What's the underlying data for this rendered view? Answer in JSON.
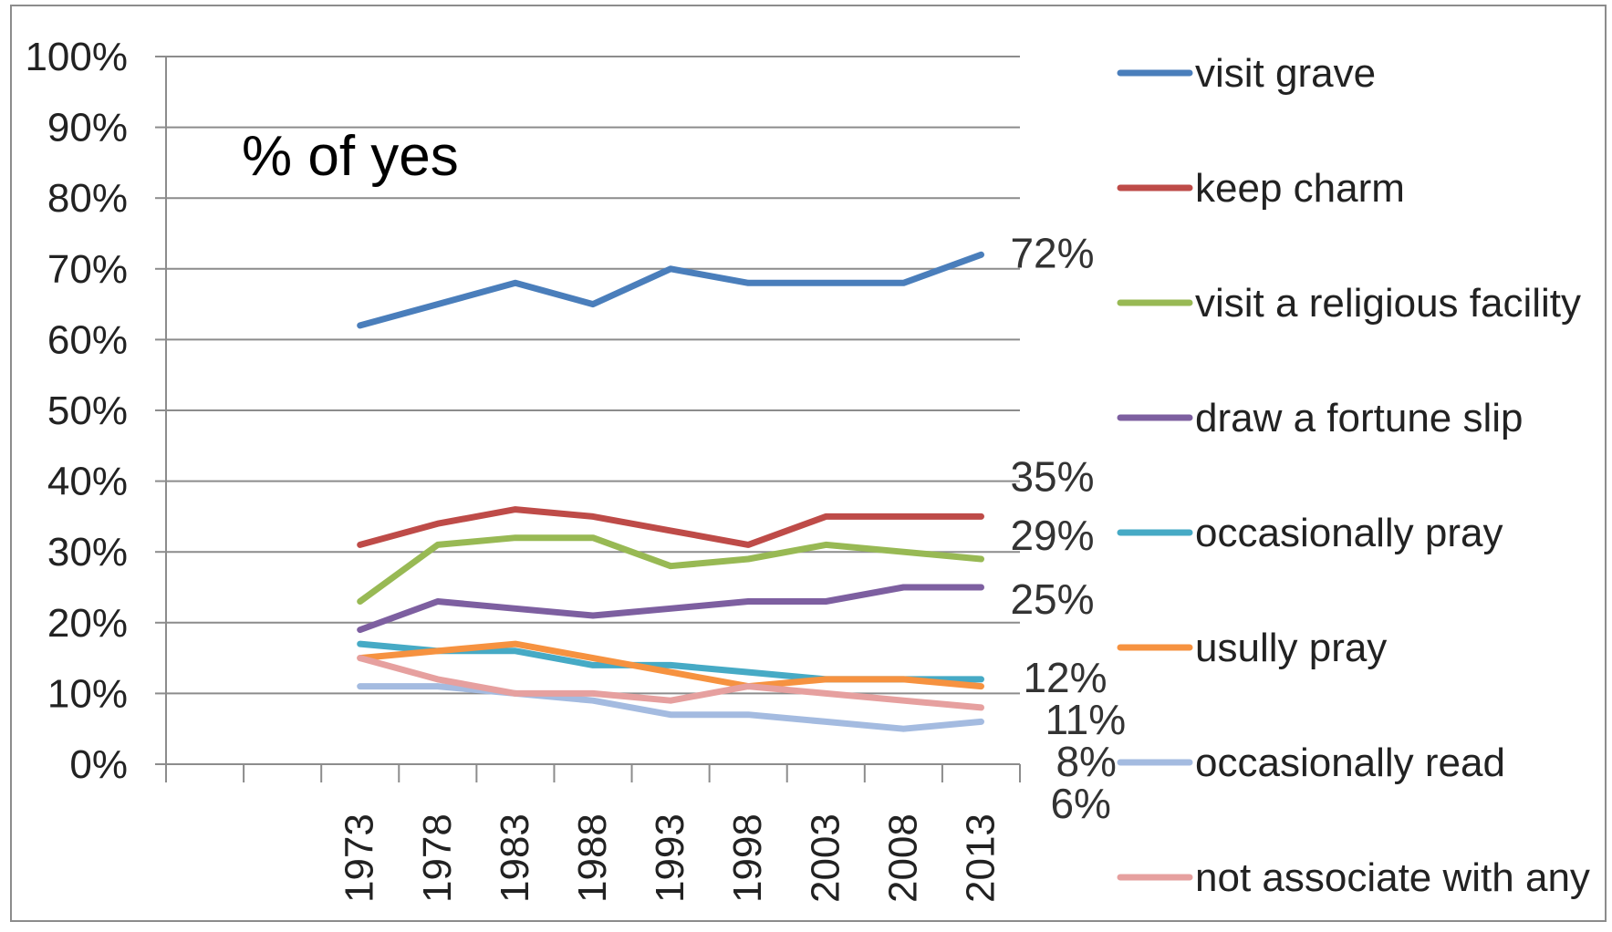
{
  "chart_data": {
    "type": "line",
    "title": "% of yes",
    "xlabel": "",
    "ylabel": "",
    "x": [
      "1973",
      "1978",
      "1983",
      "1988",
      "1993",
      "1998",
      "2003",
      "2008",
      "2013"
    ],
    "y_ticks": [
      "0%",
      "10%",
      "20%",
      "30%",
      "40%",
      "50%",
      "60%",
      "70%",
      "80%",
      "90%",
      "100%"
    ],
    "ylim": [
      0,
      100
    ],
    "grid": "horizontal",
    "legend_position": "right",
    "series": [
      {
        "name": "visit grave",
        "color": "#4a7ebb",
        "values": [
          62,
          65,
          68,
          65,
          70,
          68,
          68,
          68,
          72
        ]
      },
      {
        "name": "keep charm",
        "color": "#be4b48",
        "values": [
          31,
          34,
          36,
          35,
          33,
          31,
          35,
          35,
          35
        ]
      },
      {
        "name": "visit a religious facility",
        "color": "#98b954",
        "values": [
          23,
          31,
          32,
          32,
          28,
          29,
          31,
          30,
          29
        ]
      },
      {
        "name": "draw a fortune slip",
        "color": "#7d5fa0",
        "values": [
          19,
          23,
          22,
          21,
          22,
          23,
          23,
          25,
          25
        ]
      },
      {
        "name": "occasionally pray",
        "color": "#46aac5",
        "values": [
          17,
          16,
          16,
          14,
          14,
          13,
          12,
          12,
          12
        ]
      },
      {
        "name": "usully pray",
        "color": "#f69240",
        "values": [
          15,
          16,
          17,
          15,
          13,
          11,
          12,
          12,
          11
        ]
      },
      {
        "name": "occasionally read",
        "color": "#a4bbe0",
        "values": [
          11,
          11,
          10,
          9,
          7,
          7,
          6,
          5,
          6
        ]
      },
      {
        "name": "not associate with any",
        "color": "#e6a09f",
        "values": [
          15,
          12,
          10,
          10,
          9,
          11,
          10,
          9,
          8
        ]
      }
    ],
    "end_labels": [
      {
        "text": "72%",
        "value": 72
      },
      {
        "text": "35%",
        "value": 35
      },
      {
        "text": "29%",
        "value": 29
      },
      {
        "text": "25%",
        "value": 25
      },
      {
        "text": "12%",
        "value": 12
      },
      {
        "text": "11%",
        "value": 11
      },
      {
        "text": "8%",
        "value": 8
      },
      {
        "text": "6%",
        "value": 6
      }
    ]
  }
}
